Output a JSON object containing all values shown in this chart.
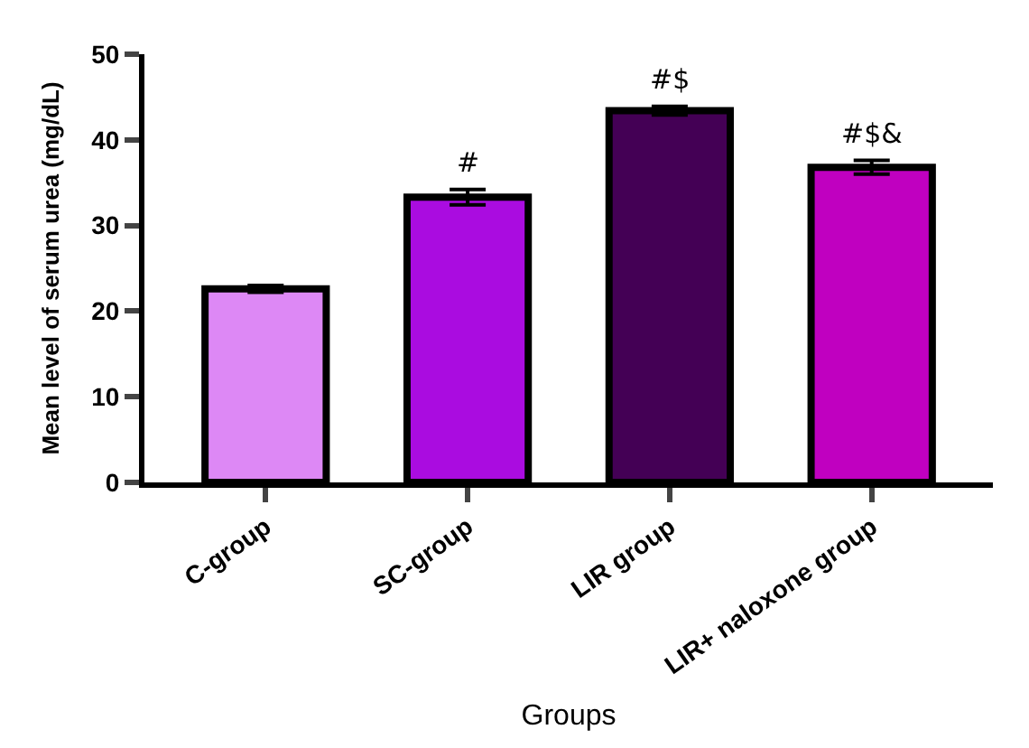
{
  "chart_data": {
    "type": "bar",
    "categories": [
      "C-group",
      "SC-group",
      "LIR group",
      "LIR+ naloxone group"
    ],
    "values": [
      22.6,
      33.3,
      43.4,
      36.8
    ],
    "errors": [
      0.4,
      0.9,
      0.5,
      0.8
    ],
    "colors": [
      "#dd88f5",
      "#aa0ce0",
      "#440055",
      "#c000c0"
    ],
    "xlabel": "Groups",
    "ylabel": "Mean level of serum urea (mg/dL)",
    "ylim": [
      0,
      50
    ],
    "yticks": [
      0,
      10,
      20,
      30,
      40,
      50
    ],
    "annotations": [
      {
        "text": "#",
        "x": "SC-group",
        "y": 34.2
      },
      {
        "text": "#$",
        "x": "LIR group",
        "y": 43.9
      },
      {
        "text": "#$&",
        "x": "LIR+ naloxone group",
        "y": 37.6
      }
    ],
    "legend": false
  }
}
